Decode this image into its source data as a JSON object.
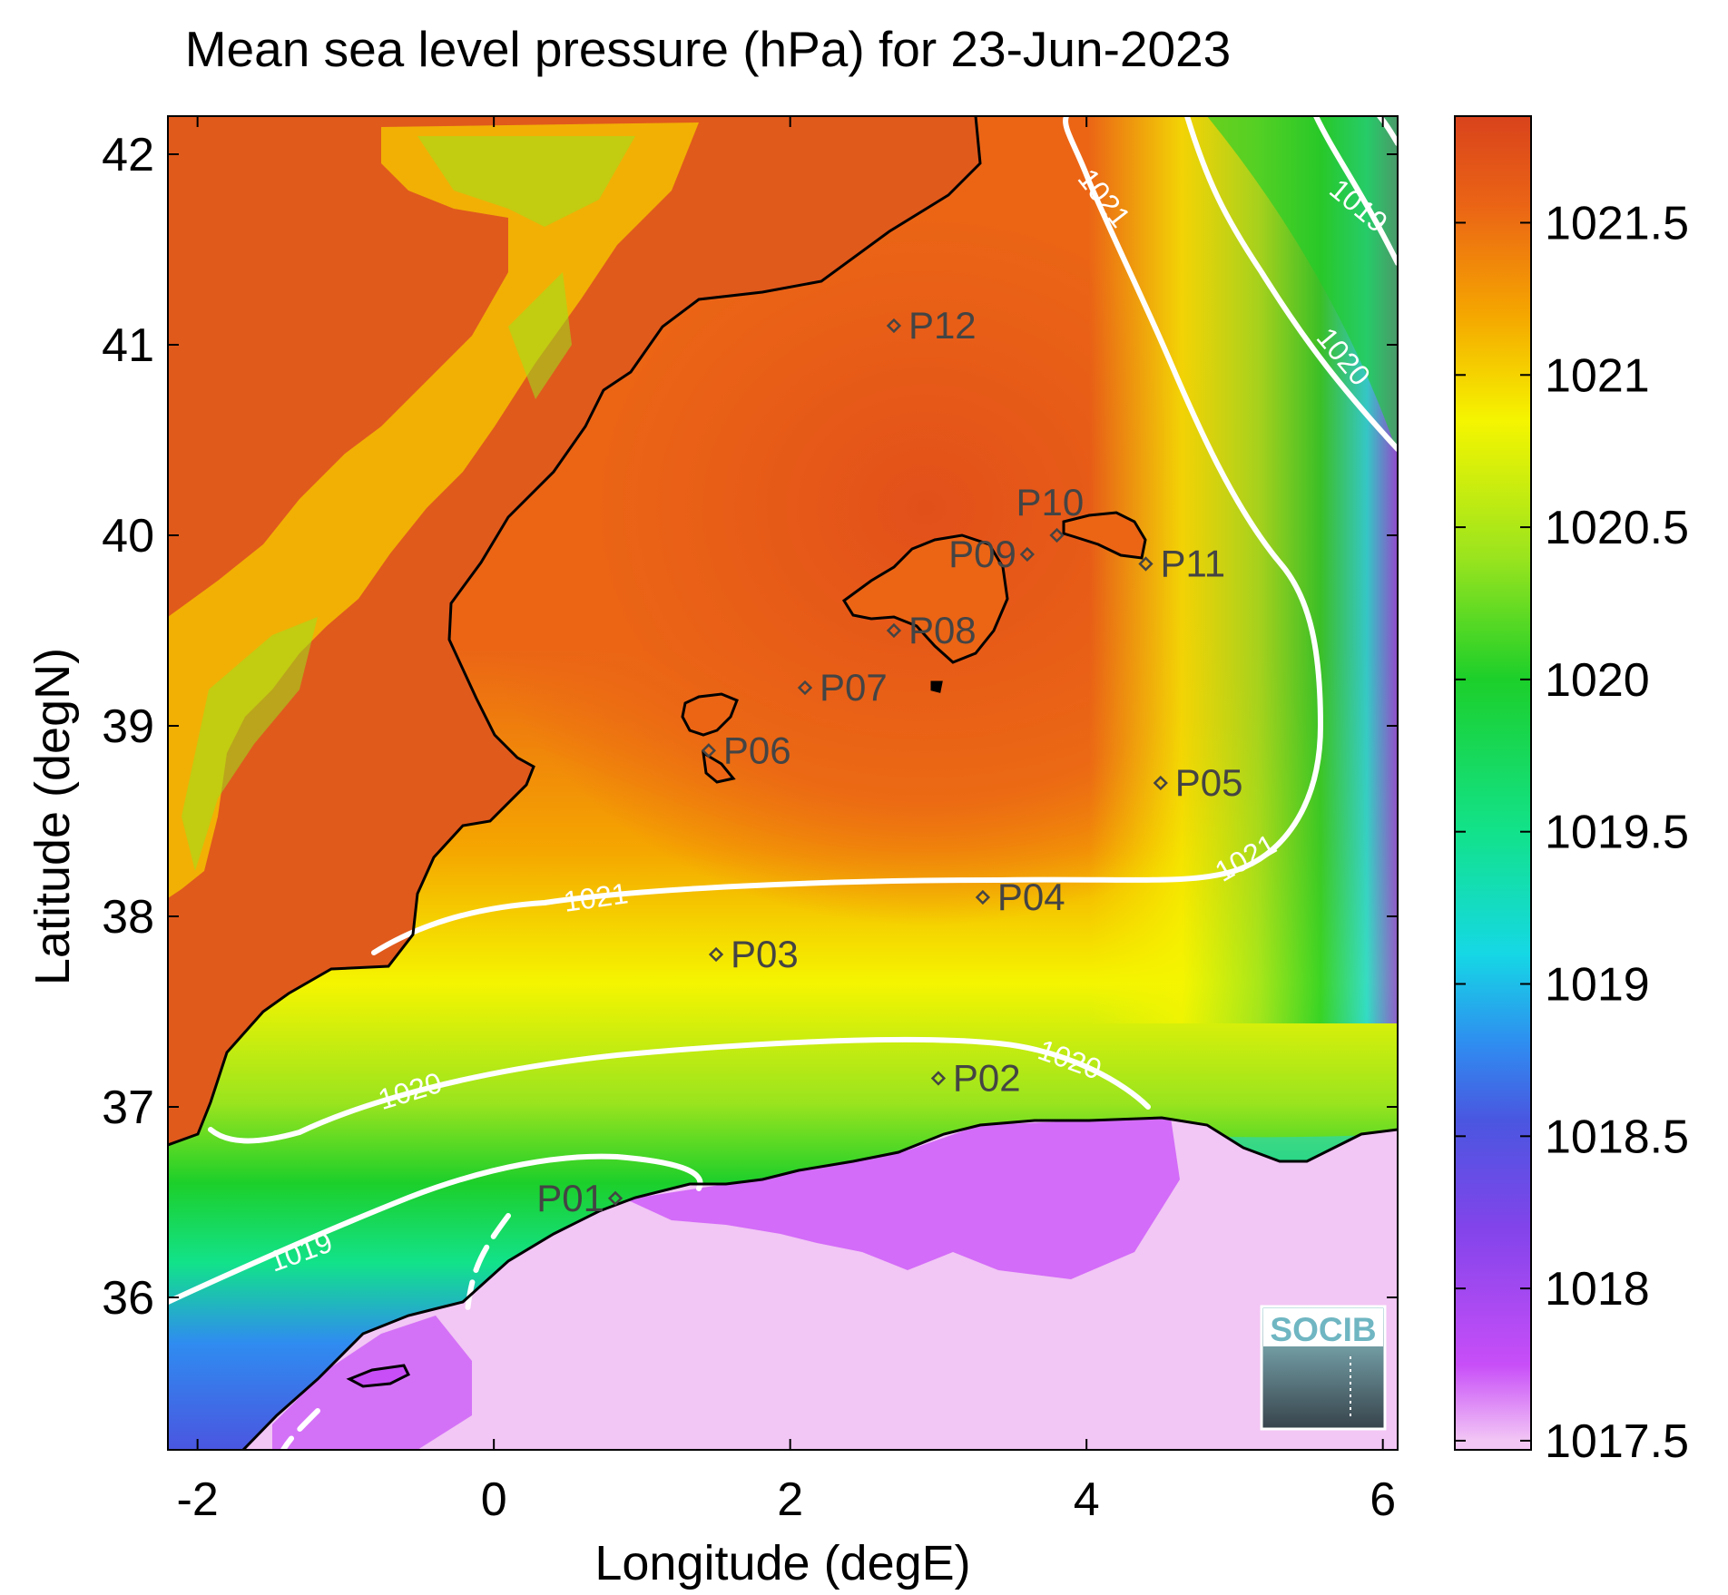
{
  "title": "Mean sea level pressure (hPa) for 23-Jun-2023",
  "x_axis": {
    "label": "Longitude (degE)",
    "range": [
      -2.2,
      6.1
    ],
    "ticks": [
      -2,
      0,
      2,
      4,
      6
    ],
    "tick_labels": [
      "-2",
      "0",
      "2",
      "4",
      "6"
    ]
  },
  "y_axis": {
    "label": "Latitude (degN)",
    "range": [
      35.2,
      42.2
    ],
    "ticks": [
      36,
      37,
      38,
      39,
      40,
      41,
      42
    ],
    "tick_labels": [
      "36",
      "37",
      "38",
      "39",
      "40",
      "41",
      "42"
    ]
  },
  "colorbar": {
    "range": [
      1017.47,
      1021.85
    ],
    "ticks": [
      1017.5,
      1018,
      1018.5,
      1019,
      1019.5,
      1020,
      1020.5,
      1021,
      1021.5
    ],
    "tick_labels": [
      "1017.5",
      "1018",
      "1018.5",
      "1019",
      "1019.5",
      "1020",
      "1020.5",
      "1021",
      "1021.5"
    ],
    "stops": [
      {
        "value": 1017.5,
        "color": "#f2c6f5"
      },
      {
        "value": 1017.75,
        "color": "#c84ef8"
      },
      {
        "value": 1018.2,
        "color": "#8244ea"
      },
      {
        "value": 1018.55,
        "color": "#4a56e0"
      },
      {
        "value": 1018.8,
        "color": "#2f8cf0"
      },
      {
        "value": 1019.1,
        "color": "#15d8e5"
      },
      {
        "value": 1019.5,
        "color": "#12e28a"
      },
      {
        "value": 1020.0,
        "color": "#1ccf2a"
      },
      {
        "value": 1020.4,
        "color": "#9ae41e"
      },
      {
        "value": 1020.85,
        "color": "#f5f500"
      },
      {
        "value": 1021.2,
        "color": "#f5a600"
      },
      {
        "value": 1021.55,
        "color": "#eb6515"
      },
      {
        "value": 1021.85,
        "color": "#d9431c"
      }
    ]
  },
  "contour_labels": {
    "c1021": "1021",
    "c1020": "1020",
    "c1019": "1019"
  },
  "stations": [
    {
      "id": "P01",
      "lon": 0.82,
      "lat": 36.52
    },
    {
      "id": "P02",
      "lon": 3.0,
      "lat": 37.15
    },
    {
      "id": "P03",
      "lon": 1.5,
      "lat": 37.8
    },
    {
      "id": "P04",
      "lon": 3.3,
      "lat": 38.1
    },
    {
      "id": "P05",
      "lon": 4.5,
      "lat": 38.7
    },
    {
      "id": "P06",
      "lon": 1.45,
      "lat": 38.87
    },
    {
      "id": "P07",
      "lon": 2.1,
      "lat": 39.2
    },
    {
      "id": "P08",
      "lon": 2.7,
      "lat": 39.5
    },
    {
      "id": "P09",
      "lon": 3.6,
      "lat": 39.9
    },
    {
      "id": "P10",
      "lon": 3.8,
      "lat": 40.0
    },
    {
      "id": "P11",
      "lon": 4.4,
      "lat": 39.85
    },
    {
      "id": "P12",
      "lon": 2.7,
      "lat": 41.1
    }
  ],
  "logo": {
    "text": "SOCIB"
  }
}
